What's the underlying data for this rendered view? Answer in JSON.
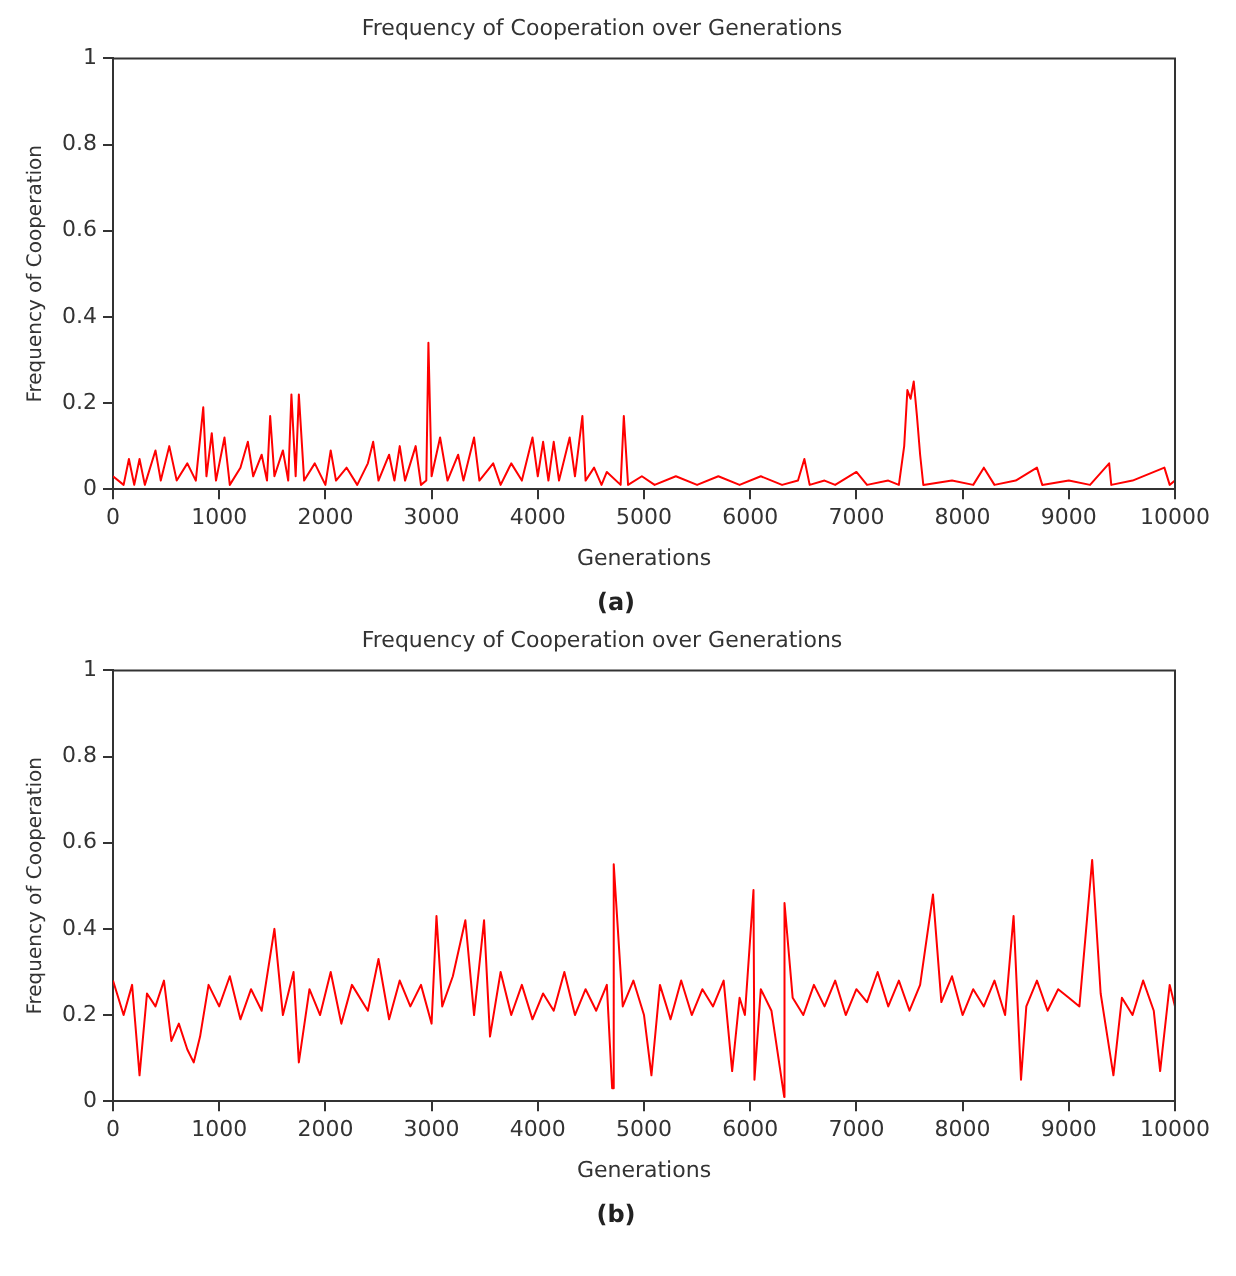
{
  "chart_data": [
    {
      "type": "line",
      "title": "Frequency of Cooperation over Generations",
      "xlabel": "Generations",
      "ylabel": "Frequency of Cooperation",
      "annotations": [
        "(a)"
      ],
      "xlim": [
        0,
        10000
      ],
      "xticks": [
        0,
        1000,
        2000,
        3000,
        4000,
        5000,
        6000,
        7000,
        8000,
        9000,
        10000
      ],
      "ylim": [
        0,
        1
      ],
      "yticks": [
        0,
        0.2,
        0.4,
        0.6,
        0.8,
        1
      ],
      "grid": false,
      "legend": false,
      "marker": "none",
      "line_style": "solid",
      "series": [
        {
          "color": "#ff0000",
          "x": [
            0,
            100,
            150,
            200,
            250,
            300,
            400,
            450,
            530,
            600,
            700,
            780,
            850,
            880,
            930,
            970,
            1050,
            1100,
            1200,
            1270,
            1320,
            1400,
            1450,
            1480,
            1520,
            1600,
            1650,
            1680,
            1720,
            1750,
            1800,
            1900,
            2000,
            2050,
            2100,
            2200,
            2300,
            2400,
            2450,
            2500,
            2600,
            2650,
            2700,
            2750,
            2850,
            2900,
            2950,
            2970,
            3000,
            3080,
            3150,
            3250,
            3300,
            3400,
            3450,
            3580,
            3650,
            3750,
            3850,
            3950,
            4000,
            4050,
            4100,
            4150,
            4200,
            4300,
            4350,
            4420,
            4450,
            4530,
            4600,
            4650,
            4780,
            4810,
            4850,
            4980,
            5100,
            5300,
            5500,
            5700,
            5900,
            6100,
            6300,
            6450,
            6510,
            6560,
            6700,
            6800,
            7000,
            7100,
            7300,
            7400,
            7450,
            7480,
            7510,
            7540,
            7570,
            7600,
            7630,
            7900,
            8100,
            8200,
            8300,
            8500,
            8700,
            8750,
            9000,
            9200,
            9380,
            9400,
            9600,
            9900,
            9950,
            10000
          ],
          "values": [
            0.03,
            0.01,
            0.07,
            0.01,
            0.07,
            0.01,
            0.09,
            0.02,
            0.1,
            0.02,
            0.06,
            0.02,
            0.19,
            0.03,
            0.13,
            0.02,
            0.12,
            0.01,
            0.05,
            0.11,
            0.03,
            0.08,
            0.02,
            0.17,
            0.03,
            0.09,
            0.02,
            0.22,
            0.03,
            0.22,
            0.02,
            0.06,
            0.01,
            0.09,
            0.02,
            0.05,
            0.01,
            0.06,
            0.11,
            0.02,
            0.08,
            0.02,
            0.1,
            0.02,
            0.1,
            0.01,
            0.02,
            0.34,
            0.03,
            0.12,
            0.02,
            0.08,
            0.02,
            0.12,
            0.02,
            0.06,
            0.01,
            0.06,
            0.02,
            0.12,
            0.03,
            0.11,
            0.02,
            0.11,
            0.02,
            0.12,
            0.03,
            0.17,
            0.02,
            0.05,
            0.01,
            0.04,
            0.01,
            0.17,
            0.01,
            0.03,
            0.01,
            0.03,
            0.01,
            0.03,
            0.01,
            0.03,
            0.01,
            0.02,
            0.07,
            0.01,
            0.02,
            0.01,
            0.04,
            0.01,
            0.02,
            0.01,
            0.1,
            0.23,
            0.21,
            0.25,
            0.17,
            0.08,
            0.01,
            0.02,
            0.01,
            0.05,
            0.01,
            0.02,
            0.05,
            0.01,
            0.02,
            0.01,
            0.06,
            0.01,
            0.02,
            0.05,
            0.01,
            0.02
          ]
        }
      ]
    },
    {
      "type": "line",
      "title": "Frequency of Cooperation over Generations",
      "xlabel": "Generations",
      "ylabel": "Frequency of Cooperation",
      "annotations": [
        "(b)"
      ],
      "xlim": [
        0,
        10000
      ],
      "xticks": [
        0,
        1000,
        2000,
        3000,
        4000,
        5000,
        6000,
        7000,
        8000,
        9000,
        10000
      ],
      "ylim": [
        0,
        1
      ],
      "yticks": [
        0,
        0.2,
        0.4,
        0.6,
        0.8,
        1
      ],
      "grid": false,
      "legend": false,
      "marker": "none",
      "line_style": "solid",
      "series": [
        {
          "color": "#ff0000",
          "x": [
            0,
            100,
            180,
            250,
            320,
            400,
            480,
            550,
            620,
            700,
            760,
            820,
            900,
            1000,
            1100,
            1200,
            1300,
            1400,
            1520,
            1600,
            1700,
            1750,
            1850,
            1950,
            2050,
            2150,
            2250,
            2400,
            2500,
            2600,
            2700,
            2800,
            2900,
            3000,
            3046,
            3100,
            3200,
            3318,
            3400,
            3494,
            3550,
            3650,
            3750,
            3850,
            3950,
            4050,
            4150,
            4250,
            4350,
            4450,
            4550,
            4650,
            4700,
            4715,
            4800,
            4900,
            5000,
            5070,
            5150,
            5250,
            5350,
            5450,
            5550,
            5650,
            5750,
            5830,
            5900,
            5950,
            6031,
            6040,
            6100,
            6200,
            6320,
            6323,
            6400,
            6500,
            6600,
            6700,
            6800,
            6900,
            7000,
            7100,
            7200,
            7300,
            7400,
            7500,
            7600,
            7721,
            7800,
            7900,
            8000,
            8100,
            8200,
            8300,
            8400,
            8480,
            8550,
            8600,
            8700,
            8800,
            8900,
            9000,
            9100,
            9220,
            9300,
            9420,
            9500,
            9600,
            9700,
            9800,
            9860,
            9950,
            10000
          ],
          "values": [
            0.28,
            0.2,
            0.27,
            0.06,
            0.25,
            0.22,
            0.28,
            0.14,
            0.18,
            0.12,
            0.09,
            0.15,
            0.27,
            0.22,
            0.29,
            0.19,
            0.26,
            0.21,
            0.4,
            0.2,
            0.3,
            0.09,
            0.26,
            0.2,
            0.3,
            0.18,
            0.27,
            0.21,
            0.33,
            0.19,
            0.28,
            0.22,
            0.27,
            0.18,
            0.43,
            0.22,
            0.29,
            0.42,
            0.2,
            0.42,
            0.15,
            0.3,
            0.2,
            0.27,
            0.19,
            0.25,
            0.21,
            0.3,
            0.2,
            0.26,
            0.21,
            0.27,
            0.03,
            0.55,
            0.22,
            0.28,
            0.2,
            0.06,
            0.27,
            0.19,
            0.28,
            0.2,
            0.26,
            0.22,
            0.28,
            0.07,
            0.24,
            0.2,
            0.49,
            0.05,
            0.26,
            0.21,
            0.01,
            0.46,
            0.24,
            0.2,
            0.27,
            0.22,
            0.28,
            0.2,
            0.26,
            0.23,
            0.3,
            0.22,
            0.28,
            0.21,
            0.27,
            0.48,
            0.23,
            0.29,
            0.2,
            0.26,
            0.22,
            0.28,
            0.2,
            0.43,
            0.05,
            0.22,
            0.28,
            0.21,
            0.26,
            0.24,
            0.22,
            0.56,
            0.25,
            0.06,
            0.24,
            0.2,
            0.28,
            0.21,
            0.07,
            0.27,
            0.22
          ]
        }
      ]
    }
  ]
}
